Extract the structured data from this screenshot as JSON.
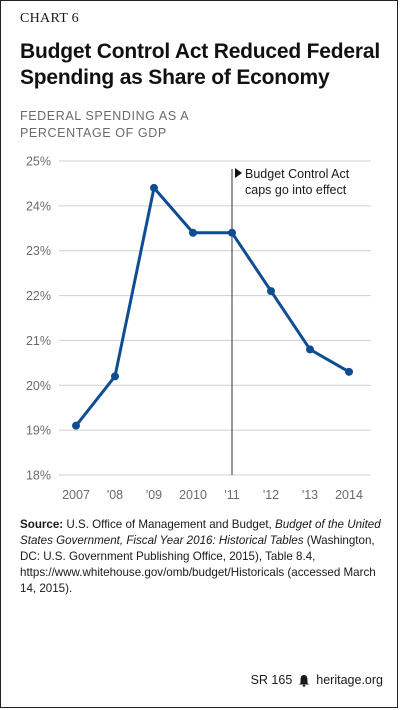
{
  "chart_label": "CHART 6",
  "title_line1": "Budget Control Act Reduced Federal",
  "title_line2": "Spending as Share of Economy",
  "ylabel_line1": "FEDERAL SPENDING AS A",
  "ylabel_line2": "PERCENTAGE OF GDP",
  "annotation": {
    "line1": "Budget Control Act",
    "line2": "caps go into effect",
    "at_category": "'11"
  },
  "source": {
    "label": "Source:",
    "text1": " U.S. Office of Management and Budget, ",
    "title_italic": "Budget of the United States Government, Fiscal Year 2016: Historical Tables",
    "text2": " (Washington, DC: U.S. Government Publishing Office, 2015), Table 8.4, https://www.whitehouse.gov/omb/budget/Historicals (accessed March 14, 2015)."
  },
  "footer": {
    "report": "SR 165",
    "site": "heritage.org"
  },
  "colors": {
    "line": "#0f4d92",
    "grid": "#cfcfcf",
    "tick": "#6b6b6b"
  },
  "chart_data": {
    "type": "line",
    "categories": [
      "2007",
      "'08",
      "'09",
      "2010",
      "'11",
      "'12",
      "'13",
      "2014"
    ],
    "values": [
      19.1,
      20.2,
      24.4,
      23.4,
      23.4,
      22.1,
      20.8,
      20.3
    ],
    "ylim": [
      18,
      25
    ],
    "yticks": [
      "18%",
      "19%",
      "20%",
      "21%",
      "22%",
      "23%",
      "24%",
      "25%"
    ],
    "ylabel": "FEDERAL SPENDING AS A PERCENTAGE OF GDP",
    "title": "Budget Control Act Reduced Federal Spending as Share of Economy",
    "grid": true
  }
}
